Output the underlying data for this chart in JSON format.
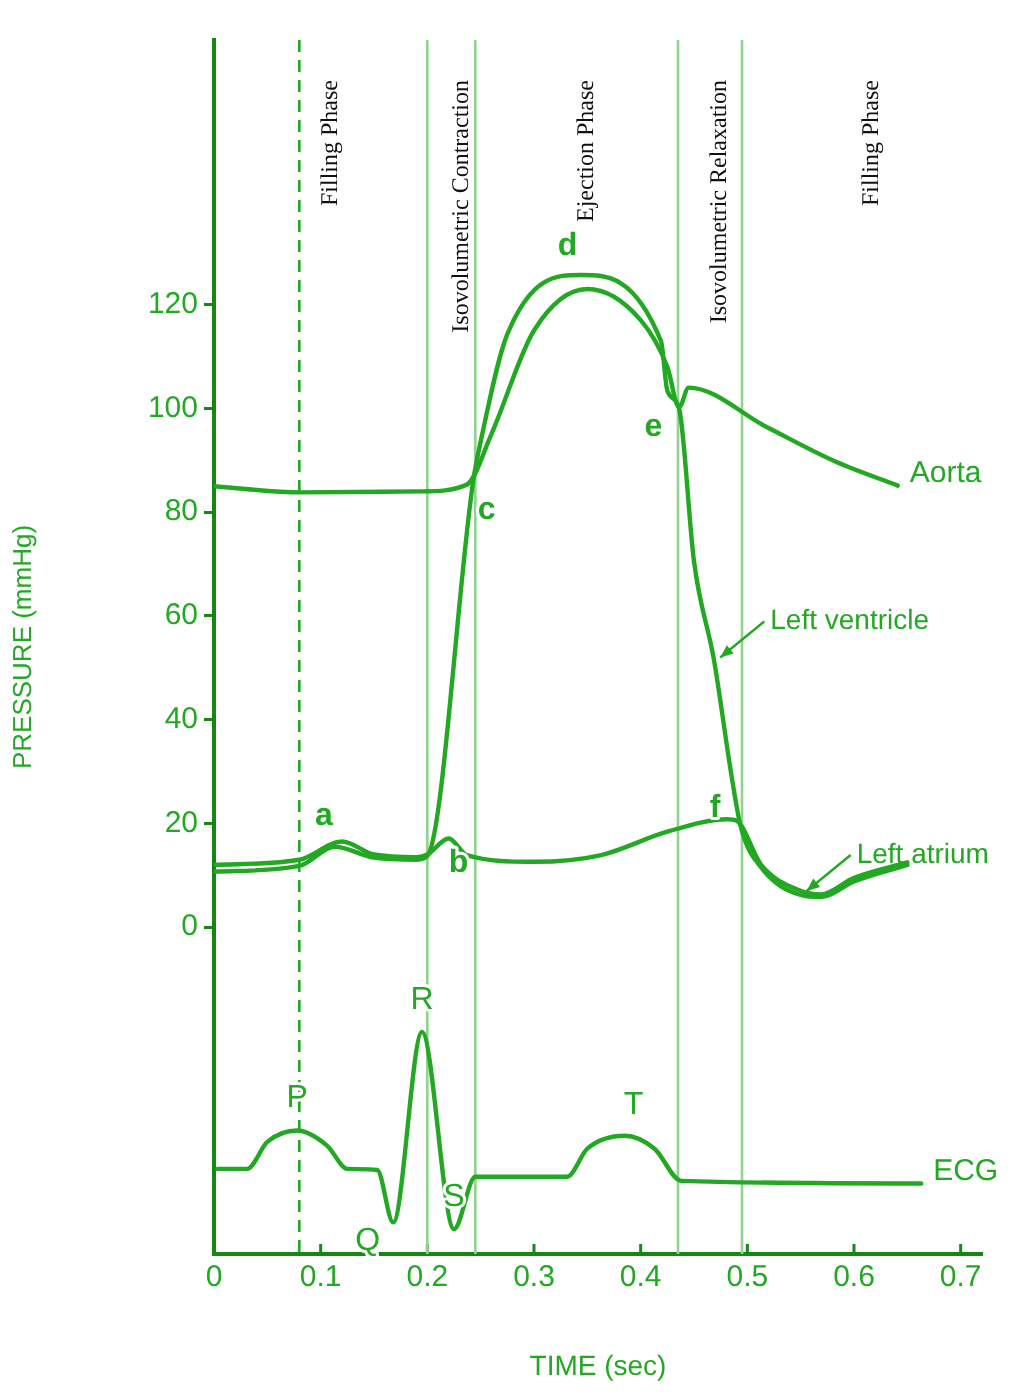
{
  "chart_data": {
    "type": "line",
    "xlabel": "TIME (sec)",
    "ylabel": "PRESSURE (mmHg)",
    "xlim": [
      0,
      0.72
    ],
    "xticks": [
      0,
      0.1,
      0.2,
      0.3,
      0.4,
      0.5,
      0.6,
      0.7
    ],
    "ylim": [
      -63,
      171
    ],
    "yticks": [
      0,
      20,
      40,
      60,
      80,
      100,
      120
    ],
    "grid": false,
    "legend": false,
    "marker": "none",
    "line_style": "solid",
    "series": [
      {
        "name": "Aorta",
        "color": "#22a822",
        "x": [
          0,
          0.081,
          0.194,
          0.237,
          0.26,
          0.3,
          0.35,
          0.4,
          0.425,
          0.436,
          0.445,
          0.519,
          0.582,
          0.641
        ],
        "values": [
          85,
          83.8,
          84,
          85.3,
          95,
          115,
          123,
          117,
          108,
          100.2,
          104,
          96.3,
          89.8,
          85.1
        ]
      },
      {
        "color": "#22a822",
        "x": [
          0,
          0.08,
          0.113,
          0.15,
          0.19,
          0.2,
          0.243,
          0.25,
          0.275,
          0.344,
          0.419,
          0.425,
          0.436,
          0.45,
          0.469,
          0.485,
          0.494,
          0.513,
          0.55,
          0.569,
          0.6,
          0.65
        ],
        "values": [
          10.7,
          11.8,
          15.5,
          13.4,
          13,
          13.7,
          86,
          93.6,
          114.3,
          125.7,
          113,
          103.4,
          100,
          70.5,
          51.2,
          29.4,
          19.2,
          11.5,
          6.2,
          5.8,
          8.8,
          12
        ]
      },
      {
        "color": "#22a822",
        "x": [
          0,
          0.08,
          0.12,
          0.15,
          0.19,
          0.2,
          0.22,
          0.237,
          0.3,
          0.363,
          0.425,
          0.481,
          0.49,
          0.513,
          0.55,
          0.569,
          0.6,
          0.65
        ],
        "values": [
          12,
          13,
          16.5,
          14,
          13.5,
          14,
          17.1,
          13.9,
          12.6,
          13.9,
          18.4,
          20.8,
          20.5,
          12,
          7,
          6.3,
          9.5,
          12.5
        ]
      },
      {
        "name": "ECG",
        "color": "#22a822",
        "x": [
          0.003,
          0.031,
          0.05,
          0.078,
          0.106,
          0.125,
          0.153,
          0.168,
          0.195,
          0.225,
          0.245,
          0.331,
          0.35,
          0.385,
          0.413,
          0.438,
          0.663
        ],
        "values": [
          -46.6,
          -46.6,
          -41.4,
          -39.2,
          -42.1,
          -46.6,
          -46.8,
          -56.9,
          -20.2,
          -58.2,
          -48.1,
          -48.1,
          -42.7,
          -40.2,
          -42.7,
          -48.9,
          -49.4
        ]
      }
    ],
    "ref_lines": [
      {
        "axis": "x",
        "value": 0.08,
        "line_style": "dashed",
        "color": "#22a822"
      },
      {
        "axis": "x",
        "value": 0.2,
        "line_style": "solid",
        "color": "#8fd48f"
      },
      {
        "axis": "x",
        "value": 0.245,
        "line_style": "solid",
        "color": "#8fd48f"
      },
      {
        "axis": "x",
        "value": 0.435,
        "line_style": "solid",
        "color": "#8fd48f"
      },
      {
        "axis": "x",
        "value": 0.495,
        "line_style": "solid",
        "color": "#8fd48f"
      }
    ],
    "annotations": [
      "Filling Phase",
      "Isovolumetric Contraction",
      "Ejection Phase",
      "Isovolumetric Relaxation",
      "Filling Phase",
      {
        "text": "a",
        "x": 0.113,
        "y": 15.5
      },
      {
        "text": "b",
        "x": 0.2,
        "y": 13.7
      },
      {
        "text": "c",
        "x": 0.243,
        "y": 86
      },
      {
        "text": "d",
        "x": 0.344,
        "y": 125.7
      },
      {
        "text": "e",
        "x": 0.436,
        "y": 100
      },
      {
        "text": "f",
        "x": 0.494,
        "y": 19.2
      },
      {
        "text": "P",
        "x": 0.078,
        "y": -39.2
      },
      {
        "text": "Q",
        "x": 0.168,
        "y": -56.9
      },
      {
        "text": "R",
        "x": 0.195,
        "y": -20.2
      },
      {
        "text": "S",
        "x": 0.225,
        "y": -58.2
      },
      {
        "text": "T",
        "x": 0.385,
        "y": -40.2
      },
      {
        "text": "Left ventricle",
        "x": 0.469,
        "y": 51.2
      },
      {
        "text": "Left atrium",
        "x": 0.55,
        "y": 6.2
      }
    ]
  }
}
